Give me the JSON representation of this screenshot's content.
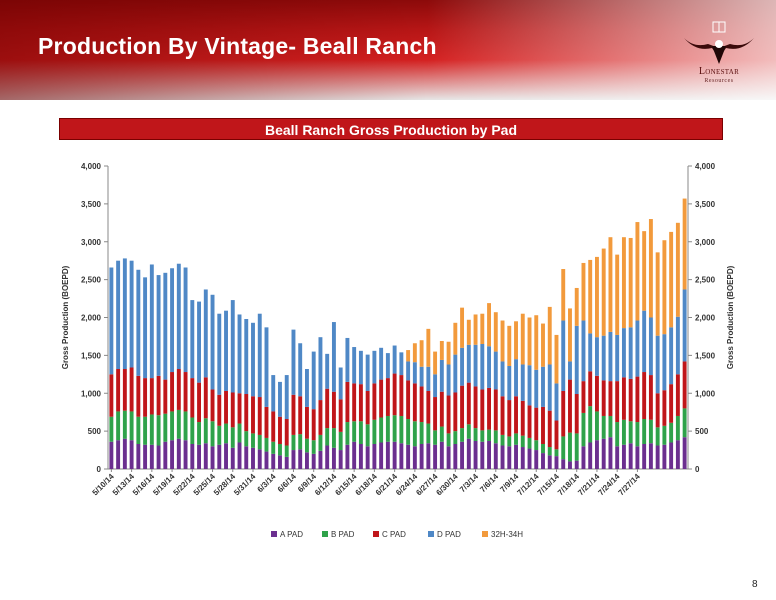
{
  "slide": {
    "title": "Production By Vintage- Beall Ranch",
    "page_number": "8"
  },
  "logo": {
    "name": "Lonestar",
    "sub": "Resources"
  },
  "colors": {
    "A PAD": "#6b2f8f",
    "B PAD": "#2fa24a",
    "C PAD": "#c0161a",
    "D PAD": "#4f88c6",
    "32H-34H": "#f29a3c",
    "header_bg": "#c0161a"
  },
  "chart_data": {
    "type": "bar",
    "stacked": true,
    "title": "Beall Ranch Gross Production by Pad",
    "ylabel": "Gross Production (BOEPD)",
    "y2label": "Gross Production (BOEPD)",
    "ylim": [
      0,
      4000
    ],
    "yticks": [
      "0",
      "500",
      "1,000",
      "1,500",
      "2,000",
      "2,500",
      "3,000",
      "3,500",
      "4,000"
    ],
    "xtick_labels": [
      "5/10/14",
      "5/13/14",
      "5/16/14",
      "5/19/14",
      "5/22/14",
      "5/25/14",
      "5/28/14",
      "5/31/14",
      "6/3/14",
      "6/6/14",
      "6/9/14",
      "6/12/14",
      "6/15/14",
      "6/18/14",
      "6/21/14",
      "6/24/14",
      "6/27/14",
      "6/30/14",
      "7/3/14",
      "7/6/14",
      "7/9/14",
      "7/12/14",
      "7/15/14",
      "7/18/14",
      "7/21/14",
      "7/24/14",
      "7/27/14"
    ],
    "legend_position": "bottom",
    "series": [
      {
        "name": "A PAD",
        "values": [
          360,
          380,
          400,
          380,
          330,
          320,
          320,
          310,
          360,
          380,
          400,
          380,
          330,
          320,
          340,
          300,
          320,
          340,
          280,
          350,
          300,
          280,
          260,
          230,
          200,
          180,
          160,
          250,
          260,
          220,
          200,
          240,
          310,
          280,
          250,
          320,
          360,
          330,
          300,
          330,
          350,
          360,
          360,
          340,
          320,
          300,
          330,
          340,
          320,
          360,
          300,
          330,
          360,
          400,
          370,
          360,
          370,
          340,
          310,
          300,
          320,
          290,
          270,
          250,
          210,
          180,
          170,
          130,
          100,
          110,
          300,
          350,
          380,
          400,
          420,
          300,
          320,
          340,
          300,
          330,
          340,
          310,
          320,
          350,
          380,
          420
        ]
      },
      {
        "name": "B PAD",
        "values": [
          330,
          380,
          370,
          380,
          360,
          370,
          400,
          400,
          370,
          380,
          380,
          380,
          350,
          300,
          330,
          330,
          250,
          260,
          270,
          250,
          200,
          190,
          190,
          180,
          160,
          150,
          150,
          200,
          200,
          180,
          180,
          210,
          230,
          260,
          240,
          300,
          270,
          300,
          290,
          320,
          330,
          340,
          350,
          360,
          340,
          330,
          290,
          260,
          190,
          200,
          170,
          170,
          180,
          190,
          170,
          150,
          150,
          170,
          140,
          130,
          150,
          150,
          140,
          130,
          120,
          110,
          90,
          300,
          380,
          360,
          440,
          480,
          380,
          300,
          280,
          320,
          330,
          290,
          320,
          330,
          310,
          240,
          250,
          260,
          320,
          380
        ]
      },
      {
        "name": "C PAD",
        "values": [
          560,
          560,
          550,
          580,
          540,
          510,
          480,
          520,
          450,
          520,
          540,
          520,
          520,
          520,
          540,
          420,
          410,
          430,
          460,
          400,
          490,
          490,
          500,
          410,
          400,
          360,
          350,
          530,
          500,
          420,
          410,
          460,
          520,
          480,
          430,
          530,
          500,
          490,
          440,
          480,
          500,
          500,
          550,
          540,
          510,
          500,
          470,
          430,
          440,
          460,
          500,
          510,
          560,
          550,
          550,
          540,
          550,
          540,
          510,
          480,
          490,
          460,
          430,
          430,
          490,
          480,
          380,
          600,
          700,
          520,
          420,
          460,
          470,
          470,
          460,
          540,
          560,
          560,
          600,
          620,
          590,
          450,
          470,
          510,
          550,
          620
        ]
      },
      {
        "name": "D PAD",
        "values": [
          1410,
          1430,
          1460,
          1410,
          1400,
          1330,
          1500,
          1330,
          1410,
          1370,
          1390,
          1380,
          1030,
          1070,
          1160,
          1250,
          1070,
          1060,
          1220,
          1040,
          990,
          970,
          1100,
          1050,
          480,
          460,
          580,
          860,
          700,
          500,
          760,
          830,
          460,
          920,
          420,
          580,
          480,
          440,
          480,
          430,
          420,
          330,
          370,
          300,
          250,
          280,
          260,
          320,
          300,
          420,
          410,
          500,
          500,
          500,
          550,
          600,
          550,
          500,
          460,
          450,
          490,
          480,
          530,
          500,
          530,
          610,
          490,
          930,
          240,
          900,
          800,
          500,
          510,
          590,
          650,
          610,
          650,
          680,
          740,
          810,
          760,
          760,
          740,
          750,
          760,
          950
        ]
      },
      {
        "name": "32H-34H",
        "values": [
          0,
          0,
          0,
          0,
          0,
          0,
          0,
          0,
          0,
          0,
          0,
          0,
          0,
          0,
          0,
          0,
          0,
          0,
          0,
          0,
          0,
          0,
          0,
          0,
          0,
          0,
          0,
          0,
          0,
          0,
          0,
          0,
          0,
          0,
          0,
          0,
          0,
          0,
          0,
          0,
          0,
          0,
          0,
          0,
          150,
          250,
          350,
          500,
          300,
          250,
          300,
          420,
          530,
          330,
          400,
          400,
          570,
          520,
          540,
          530,
          500,
          670,
          630,
          720,
          570,
          760,
          640,
          680,
          700,
          500,
          760,
          970,
          1060,
          1150,
          1250,
          1060,
          1200,
          1180,
          1300,
          1050,
          1300,
          1100,
          1240,
          1260,
          1240,
          1200
        ]
      }
    ]
  }
}
